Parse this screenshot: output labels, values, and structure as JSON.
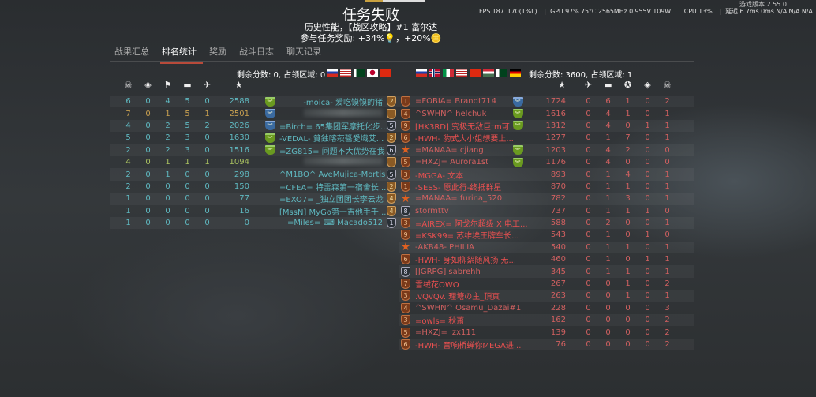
{
  "header": {
    "title": "任务失败",
    "line1": "历史性能，【战区攻略】#1 富尔达",
    "line2": "参与任务奖励: +34%💡，+20%🪙"
  },
  "perf": {
    "fps": "FPS 187",
    "low": "170(1%L)",
    "gpu": "GPU 97% 75°C 2565MHz 0.955V 109W",
    "cpu": "CPU 13%",
    "latency": "延迟 6.7ms 0ms N/A N/A N/A",
    "version": "游戏版本 2.55.0"
  },
  "tabs": [
    {
      "label": "战果汇总"
    },
    {
      "label": "排名统计",
      "active": true
    },
    {
      "label": "奖励"
    },
    {
      "label": "战斗日志"
    },
    {
      "label": "聊天记录"
    }
  ],
  "left": {
    "score_text": "剩余分数: 0, 占领区域: 0",
    "flags": [
      "ru",
      "us",
      "pk",
      "jp",
      "cn"
    ],
    "columns": [
      "deaths-skull",
      "diamond",
      "capture",
      "ground-kills-tank",
      "air-kills-plane",
      "score-star"
    ],
    "column_glyphs": [
      "☠",
      "◈",
      "⚑",
      "▬",
      "✈",
      "★"
    ],
    "color": "#5fb8c0",
    "self_color": "#c8a050",
    "squad_color": "#a8c060",
    "rows": [
      {
        "v": [
          6,
          0,
          4,
          5,
          0,
          2588
        ],
        "badge": "green",
        "name": "-moica- 爱吃馍馍的猪",
        "rank": "2",
        "rs": "gold"
      },
      {
        "v": [
          7,
          0,
          1,
          5,
          1,
          2501
        ],
        "badge": "blue",
        "name": "",
        "blurred": true,
        "rank": "",
        "rs": "gold",
        "hl": "self"
      },
      {
        "v": [
          4,
          0,
          2,
          5,
          2,
          2026
        ],
        "badge": "blue",
        "name": "=Birch= 65集团军摩托化步...",
        "rank": "5",
        "rs": "gray"
      },
      {
        "v": [
          5,
          0,
          2,
          3,
          0,
          1630
        ],
        "badge": "green",
        "name": "-VEDAL- 貧鉵喀萩醬愛熾艾...",
        "rank": "2",
        "rs": "gold"
      },
      {
        "v": [
          2,
          0,
          2,
          3,
          0,
          1516
        ],
        "badge": "green",
        "name": "=ZG815= 问题不大优势在我",
        "rank": "6",
        "rs": "gray"
      },
      {
        "v": [
          4,
          0,
          1,
          1,
          1,
          1094
        ],
        "badge": "",
        "name": "",
        "blurred": true,
        "rank": "",
        "rs": "gold",
        "hl": "squad"
      },
      {
        "v": [
          2,
          0,
          1,
          0,
          0,
          298
        ],
        "badge": "",
        "name": "^M1BO^ AveMujica-Mortis",
        "rank": "5",
        "rs": "gray"
      },
      {
        "v": [
          2,
          0,
          0,
          0,
          0,
          150
        ],
        "badge": "",
        "name": "=CFEA= 特雷森第一宿舍长...",
        "rank": "2",
        "rs": "gold"
      },
      {
        "v": [
          1,
          0,
          0,
          0,
          0,
          77
        ],
        "badge": "",
        "name": "=EXO7= _独立团团长李云龙",
        "rank": "4",
        "rs": "gold"
      },
      {
        "v": [
          1,
          0,
          0,
          0,
          0,
          16
        ],
        "badge": "",
        "name": "[MssN] MyGo第一吉他手千...",
        "rank": "4",
        "rs": "gold"
      },
      {
        "v": [
          1,
          0,
          0,
          0,
          0,
          0
        ],
        "badge": "",
        "name": "=Miles= ⌨ Macado512",
        "rank": "1",
        "rs": "gray"
      }
    ]
  },
  "right": {
    "score_text": "剩余分数: 3600, 占领区域: 1",
    "flags": [
      "ru",
      "no",
      "it",
      "us",
      "cn",
      "hu",
      "pk",
      "de"
    ],
    "columns": [
      "score-star",
      "air-kills-plane",
      "ground-kills-tank",
      "assist",
      "diamond",
      "deaths-skull"
    ],
    "column_glyphs": [
      "★",
      "✈",
      "▬",
      "✪",
      "◈",
      "☠"
    ],
    "color": "#d06060",
    "name_color": "#e85050",
    "rows": [
      {
        "name": "=FOBIA= Brandt714",
        "rank": "1",
        "rs": "bronze",
        "badge": "blue",
        "v": [
          1724,
          0,
          6,
          1,
          0,
          2
        ]
      },
      {
        "name": "^SWHN^ helchuk",
        "rank": "4",
        "rs": "bronze",
        "badge": "green",
        "v": [
          1616,
          0,
          4,
          1,
          0,
          1
        ]
      },
      {
        "name": "[HK3RD] 究极无敌巨tm可...",
        "rank": "9",
        "rs": "bronze",
        "badge": "green",
        "v": [
          1312,
          0,
          4,
          0,
          1,
          1
        ]
      },
      {
        "name": "-HWH- 豹式大小姐想要上...",
        "rank": "6",
        "rs": "bronze",
        "badge": "",
        "v": [
          1277,
          0,
          1,
          7,
          0,
          1
        ]
      },
      {
        "name": "=MANAA= cjiang",
        "rank": "★",
        "rs": "star",
        "badge": "green",
        "v": [
          1203,
          0,
          4,
          2,
          0,
          0
        ]
      },
      {
        "name": "=HXZJ= Aurora1st",
        "rank": "5",
        "rs": "bronze",
        "badge": "green",
        "v": [
          1176,
          0,
          4,
          0,
          0,
          0
        ]
      },
      {
        "name": "-MGGA- 文本",
        "rank": "3",
        "rs": "bronze",
        "badge": "",
        "v": [
          893,
          0,
          1,
          4,
          0,
          1
        ]
      },
      {
        "name": "-SESS- 愿此行-终抵群星",
        "rank": "1",
        "rs": "bronze",
        "badge": "",
        "v": [
          870,
          0,
          1,
          1,
          0,
          1
        ]
      },
      {
        "name": "=MANAA= furina_520",
        "rank": "★",
        "rs": "star",
        "badge": "",
        "v": [
          782,
          0,
          1,
          3,
          0,
          1
        ]
      },
      {
        "name": "stormttv",
        "rank": "8",
        "rs": "gray",
        "badge": "",
        "v": [
          737,
          0,
          1,
          1,
          1,
          0
        ]
      },
      {
        "name": "=AIREX= 阿戈尔超级 X 电工...",
        "rank": "3",
        "rs": "bronze",
        "badge": "",
        "v": [
          588,
          0,
          2,
          0,
          0,
          1
        ]
      },
      {
        "name": "=KSK99= 苏维埃王牌车长...",
        "rank": "9",
        "rs": "bronze",
        "badge": "",
        "v": [
          543,
          0,
          1,
          0,
          1,
          0
        ]
      },
      {
        "name": "-AKB48- PHILIA",
        "rank": "★",
        "rs": "star",
        "badge": "",
        "v": [
          540,
          0,
          1,
          1,
          0,
          1
        ]
      },
      {
        "name": "-HWH- 身如柳絮随风扬 无...",
        "rank": "6",
        "rs": "bronze",
        "badge": "",
        "v": [
          460,
          0,
          1,
          0,
          1,
          1
        ]
      },
      {
        "name": "[JGRPG] sabrehh",
        "rank": "8",
        "rs": "gray",
        "badge": "",
        "v": [
          345,
          0,
          1,
          1,
          0,
          1
        ]
      },
      {
        "name": "雪绒花OWO",
        "rank": "7",
        "rs": "bronze",
        "badge": "",
        "v": [
          267,
          0,
          0,
          1,
          0,
          2
        ]
      },
      {
        "name": ".vQvQv. 理塘の主_頂真",
        "rank": "3",
        "rs": "bronze",
        "badge": "",
        "v": [
          263,
          0,
          0,
          1,
          0,
          1
        ]
      },
      {
        "name": "^SWHN^ Osamu_Dazai#1",
        "rank": "4",
        "rs": "bronze",
        "badge": "",
        "v": [
          228,
          0,
          0,
          0,
          0,
          3
        ]
      },
      {
        "name": "=owls= 秋萧",
        "rank": "3",
        "rs": "bronze",
        "badge": "",
        "v": [
          162,
          0,
          0,
          0,
          0,
          2
        ]
      },
      {
        "name": "=HXZJ= lzx111",
        "rank": "5",
        "rs": "bronze",
        "badge": "",
        "v": [
          139,
          0,
          0,
          0,
          0,
          2
        ]
      },
      {
        "name": "-HWH- 音响桥蝉你MEGA进...",
        "rank": "6",
        "rs": "bronze",
        "badge": "",
        "v": [
          76,
          0,
          0,
          0,
          0,
          2
        ]
      }
    ]
  }
}
